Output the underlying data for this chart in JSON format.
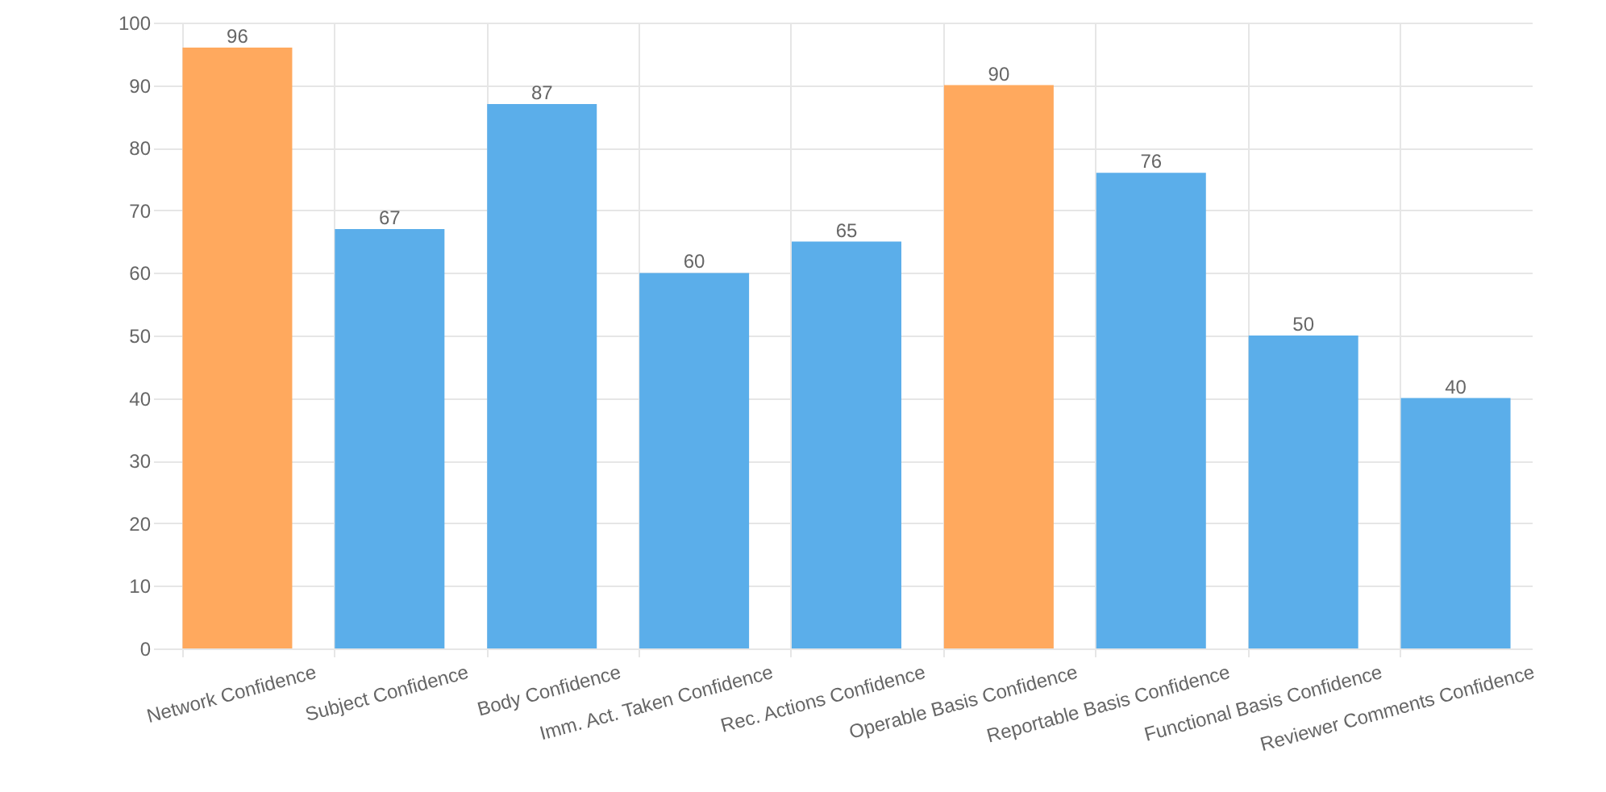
{
  "chart_data": {
    "type": "bar",
    "categories": [
      "Network Confidence",
      "Subject Confidence",
      "Body Confidence",
      "Imm. Act. Taken Confidence",
      "Rec. Actions Confidence",
      "Operable Basis Confidence",
      "Reportable Basis Confidence",
      "Functional Basis Confidence",
      "Reviewer Comments Confidence"
    ],
    "values": [
      96,
      67,
      87,
      60,
      65,
      90,
      76,
      50,
      40
    ],
    "colors": [
      "#ffa95e",
      "#5baeea",
      "#5baeea",
      "#5baeea",
      "#5baeea",
      "#ffa95e",
      "#5baeea",
      "#5baeea",
      "#5baeea"
    ],
    "ylim": [
      0,
      100
    ],
    "yticks": [
      0,
      10,
      20,
      30,
      40,
      50,
      60,
      70,
      80,
      90,
      100
    ],
    "grid": true,
    "data_labels": true
  }
}
